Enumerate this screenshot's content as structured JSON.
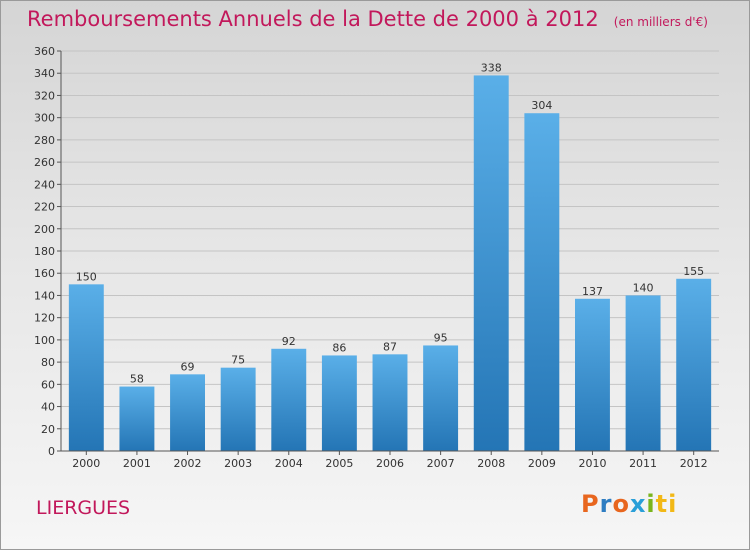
{
  "title": "Remboursements Annuels de la Dette de 2000 à 2012",
  "unit": "(en milliers d'€)",
  "city": "LIERGUES",
  "logo": [
    "P",
    "r",
    "o",
    "x",
    "i",
    "ti"
  ],
  "colors": {
    "accent": "#c2185b",
    "bar_top": "#5aafe8",
    "bar_bottom": "#2475b5"
  },
  "chart_data": {
    "type": "bar",
    "categories": [
      "2000",
      "2001",
      "2002",
      "2003",
      "2004",
      "2005",
      "2006",
      "2007",
      "2008",
      "2009",
      "2010",
      "2011",
      "2012"
    ],
    "values": [
      150,
      58,
      69,
      75,
      92,
      86,
      87,
      95,
      338,
      304,
      137,
      140,
      155
    ],
    "ylim": [
      0,
      360
    ],
    "ytick_step": 20,
    "grid": true,
    "legend": "none",
    "xlabel": "",
    "ylabel": ""
  }
}
